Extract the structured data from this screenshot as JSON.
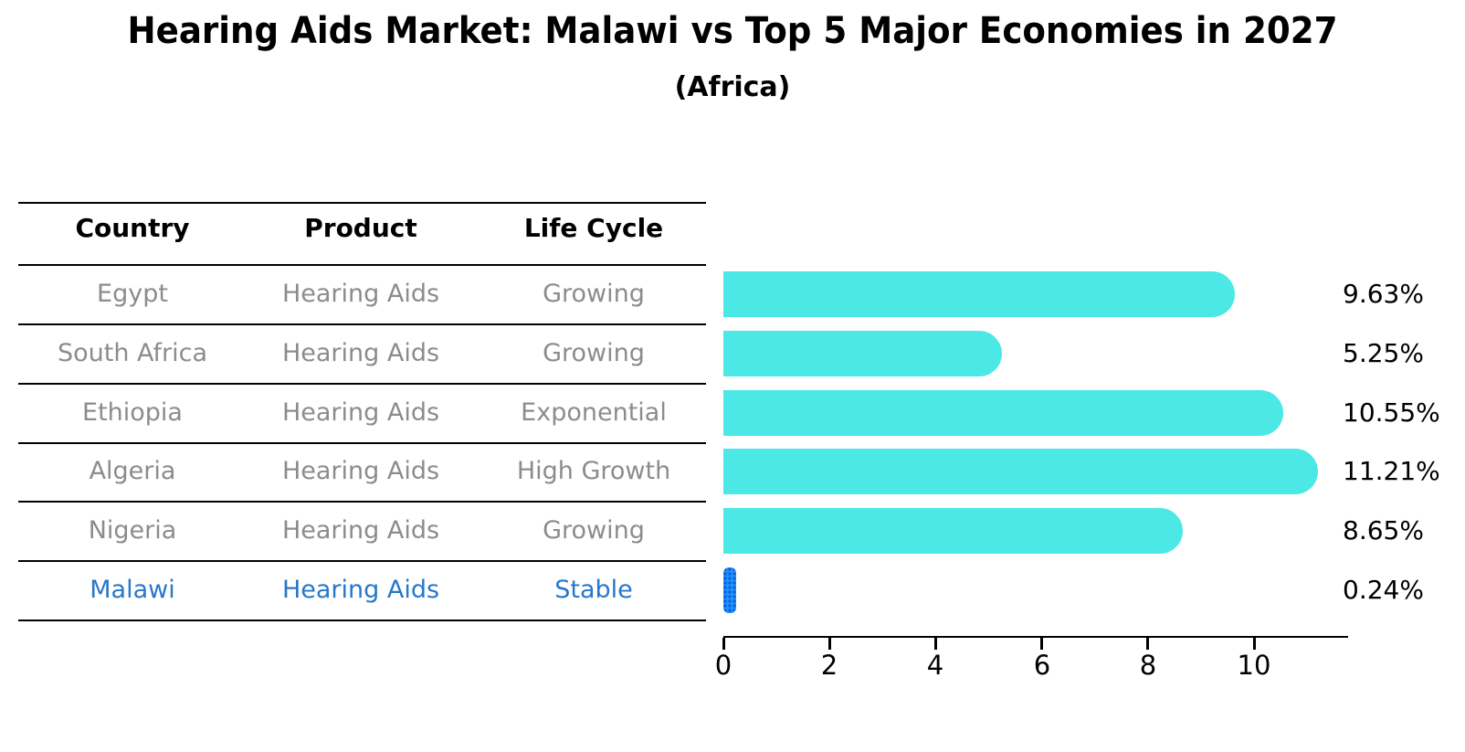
{
  "title": "Hearing Aids Market: Malawi vs Top 5 Major Economies in 2027",
  "subtitle": "(Africa)",
  "table": {
    "headers": {
      "country": "Country",
      "product": "Product",
      "life_cycle": "Life Cycle"
    },
    "rows": [
      {
        "country": "Egypt",
        "product": "Hearing Aids",
        "life_cycle": "Growing",
        "highlight": false
      },
      {
        "country": "South Africa",
        "product": "Hearing Aids",
        "life_cycle": "Growing",
        "highlight": false
      },
      {
        "country": "Ethiopia",
        "product": "Hearing Aids",
        "life_cycle": "Exponential",
        "highlight": false
      },
      {
        "country": "Algeria",
        "product": "Hearing Aids",
        "life_cycle": "High Growth",
        "highlight": false
      },
      {
        "country": "Nigeria",
        "product": "Hearing Aids",
        "life_cycle": "Growing",
        "highlight": false
      },
      {
        "country": "Malawi",
        "product": "Hearing Aids",
        "life_cycle": "Stable",
        "highlight": true
      }
    ]
  },
  "chart_data": {
    "type": "bar",
    "orientation": "horizontal",
    "title": "Hearing Aids Market: Malawi vs Top 5 Major Economies in 2027 (Africa)",
    "categories": [
      "Egypt",
      "South Africa",
      "Ethiopia",
      "Algeria",
      "Nigeria",
      "Malawi"
    ],
    "values": [
      9.63,
      5.25,
      10.55,
      11.21,
      8.65,
      0.24
    ],
    "value_labels": [
      "9.63%",
      "5.25%",
      "10.55%",
      "11.21%",
      "8.65%",
      "0.24%"
    ],
    "xlabel": "",
    "ylabel": "",
    "xlim": [
      0,
      11.77
    ],
    "x_ticks": [
      0,
      2,
      4,
      6,
      8,
      10
    ],
    "x_tick_labels": [
      "0",
      "2",
      "4",
      "6",
      "8",
      "10"
    ],
    "grid": false,
    "legend": false,
    "bar_color": "#4be8e6",
    "highlight_index": 5,
    "highlight_color": "#1e90ff"
  },
  "colors": {
    "background": "#ffffff",
    "bar": "#4be8e6",
    "highlight_bar": "#1e90ff",
    "highlight_text": "#2878c8",
    "muted_text": "#8c8c8c",
    "text": "#000000"
  }
}
